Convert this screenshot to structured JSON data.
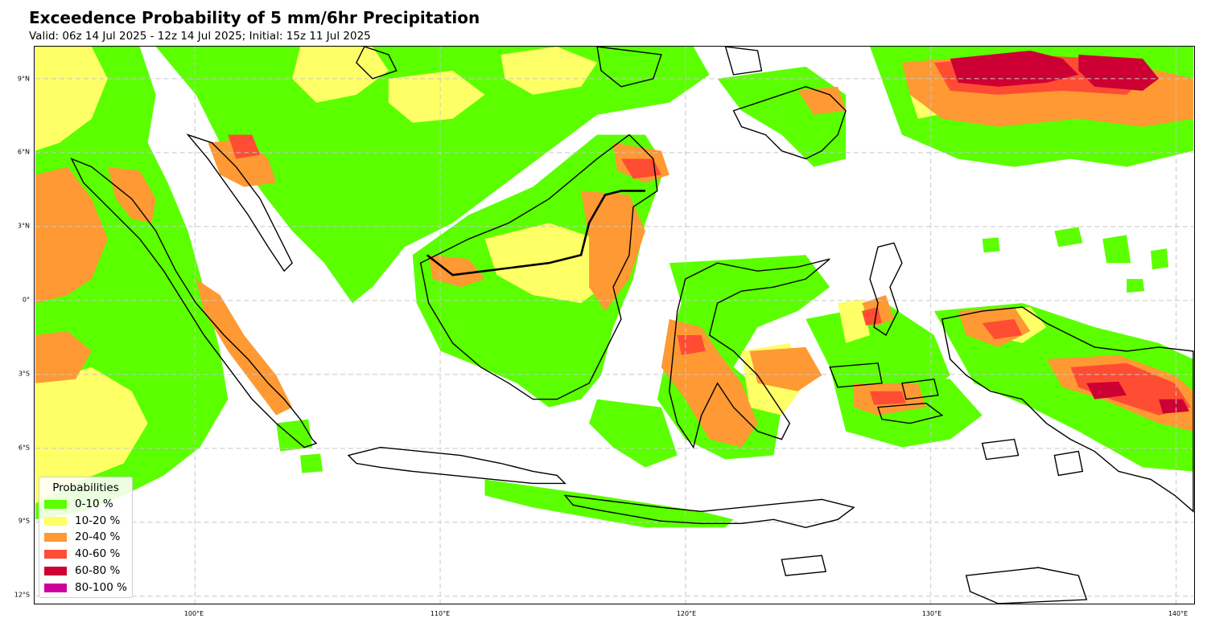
{
  "title": "Exceedence Probability of 5 mm/6hr Precipitation",
  "subtitle": "Valid: 06z 14 Jul 2025 - 12z 14 Jul 2025; Initial: 15z 11 Jul 2025",
  "map": {
    "region": "Indonesia",
    "projection": "PlateCarree",
    "lon_range": [
      93.5,
      140.7
    ],
    "lat_range": [
      -12.3,
      10.3
    ],
    "grid": true,
    "lat_ticks": [
      {
        "value": 9,
        "label": "9°N"
      },
      {
        "value": 6,
        "label": "6°N"
      },
      {
        "value": 3,
        "label": "3°N"
      },
      {
        "value": 0,
        "label": "0°"
      },
      {
        "value": -3,
        "label": "3°S"
      },
      {
        "value": -6,
        "label": "6°S"
      },
      {
        "value": -9,
        "label": "9°S"
      },
      {
        "value": -12,
        "label": "12°S"
      }
    ],
    "lon_ticks": [
      {
        "value": 100,
        "label": "100°E"
      },
      {
        "value": 110,
        "label": "110°E"
      },
      {
        "value": 120,
        "label": "120°E"
      },
      {
        "value": 130,
        "label": "130°E"
      },
      {
        "value": 140,
        "label": "140°E"
      }
    ]
  },
  "legend": {
    "title": "Probabilities",
    "placement": "lower-left",
    "items": [
      {
        "label": "0-10 %",
        "color": "#5bff00"
      },
      {
        "label": "10-20 %",
        "color": "#ffff66"
      },
      {
        "label": "20-40 %",
        "color": "#ff9933"
      },
      {
        "label": "40-60 %",
        "color": "#ff4d33"
      },
      {
        "label": "60-80 %",
        "color": "#cc0033"
      },
      {
        "label": "80-100 %",
        "color": "#cc0099"
      }
    ]
  },
  "colors": {
    "p0_10": "#5bff00",
    "p10_20": "#ffff66",
    "p20_40": "#ff9933",
    "p40_60": "#ff4d33",
    "p60_80": "#cc0033",
    "p80_100": "#cc0099",
    "coastline": "#000000",
    "gridline": "#c8c8c8"
  }
}
